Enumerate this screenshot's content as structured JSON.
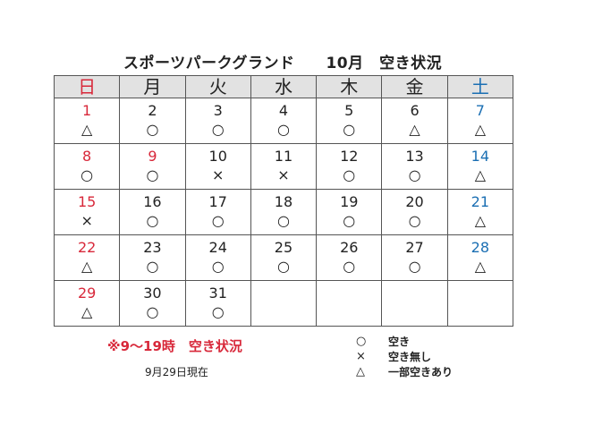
{
  "title": "スポーツパークグランド　　10月　空き状況",
  "weekdays": [
    "日",
    "月",
    "火",
    "水",
    "木",
    "金",
    "土"
  ],
  "colors": {
    "sunday": "#d8283a",
    "saturday": "#1b6fb3",
    "header_bg": "#e2e2e2"
  },
  "weeks": [
    [
      {
        "day": "1",
        "mark": "△"
      },
      {
        "day": "2",
        "mark": "○"
      },
      {
        "day": "3",
        "mark": "○"
      },
      {
        "day": "4",
        "mark": "○"
      },
      {
        "day": "5",
        "mark": "○"
      },
      {
        "day": "6",
        "mark": "△"
      },
      {
        "day": "7",
        "mark": "△"
      }
    ],
    [
      {
        "day": "8",
        "mark": "○"
      },
      {
        "day": "9",
        "mark": "○"
      },
      {
        "day": "10",
        "mark": "×"
      },
      {
        "day": "11",
        "mark": "×"
      },
      {
        "day": "12",
        "mark": "○"
      },
      {
        "day": "13",
        "mark": "○"
      },
      {
        "day": "14",
        "mark": "△"
      }
    ],
    [
      {
        "day": "15",
        "mark": "×"
      },
      {
        "day": "16",
        "mark": "○"
      },
      {
        "day": "17",
        "mark": "○"
      },
      {
        "day": "18",
        "mark": "○"
      },
      {
        "day": "19",
        "mark": "○"
      },
      {
        "day": "20",
        "mark": "○"
      },
      {
        "day": "21",
        "mark": "△"
      }
    ],
    [
      {
        "day": "22",
        "mark": "△"
      },
      {
        "day": "23",
        "mark": "○"
      },
      {
        "day": "24",
        "mark": "○"
      },
      {
        "day": "25",
        "mark": "○"
      },
      {
        "day": "26",
        "mark": "○"
      },
      {
        "day": "27",
        "mark": "○"
      },
      {
        "day": "28",
        "mark": "△"
      }
    ],
    [
      {
        "day": "29",
        "mark": "△"
      },
      {
        "day": "30",
        "mark": "○"
      },
      {
        "day": "31",
        "mark": "○"
      },
      {
        "day": "",
        "mark": ""
      },
      {
        "day": "",
        "mark": ""
      },
      {
        "day": "",
        "mark": ""
      },
      {
        "day": "",
        "mark": ""
      }
    ]
  ],
  "note": "※9～19時　空き状況",
  "as_of": "9月29日現在",
  "legend": [
    {
      "symbol": "○",
      "label": "空き"
    },
    {
      "symbol": "×",
      "label": "空き無し"
    },
    {
      "symbol": "△",
      "label": "一部空きあり"
    }
  ]
}
